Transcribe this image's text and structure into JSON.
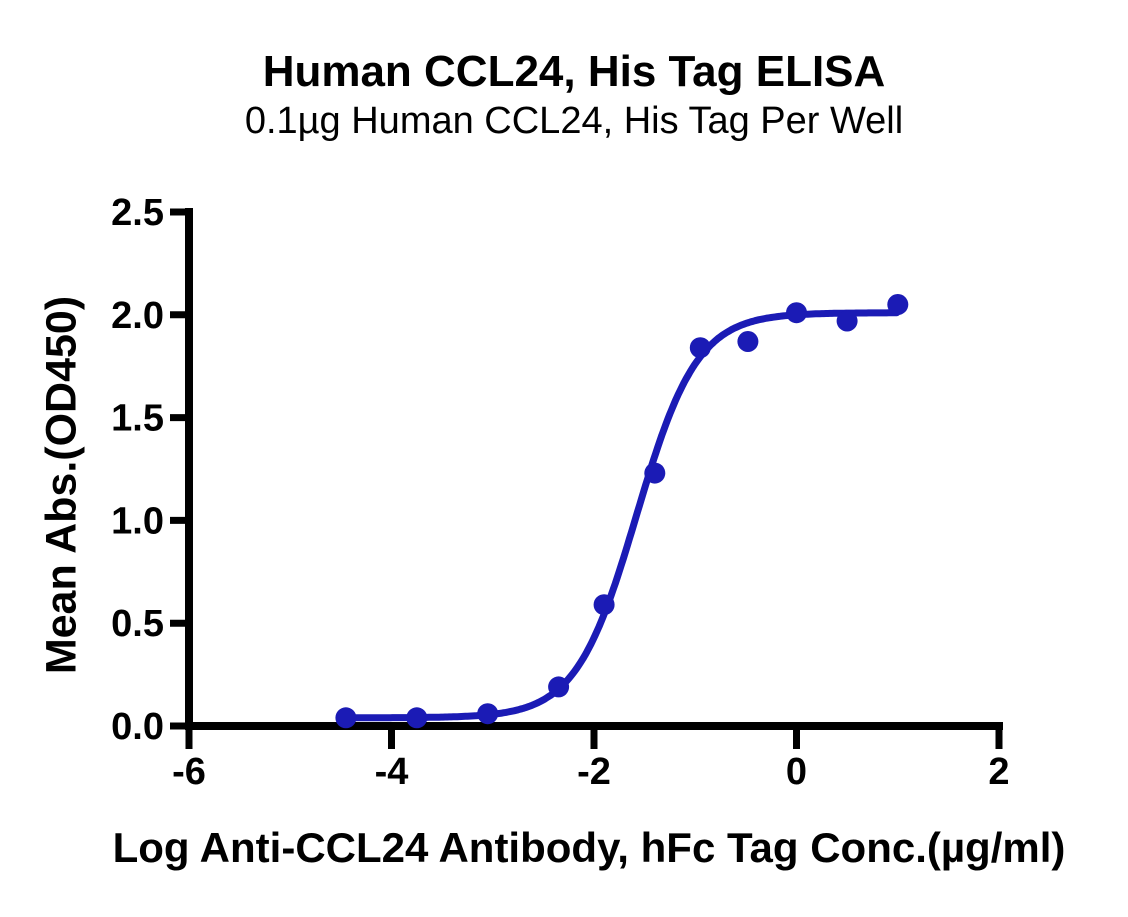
{
  "chart_data": {
    "type": "scatter",
    "title": "Human CCL24, His Tag ELISA",
    "subtitle": "0.1µg Human CCL24, His Tag Per Well",
    "xlabel": "Log Anti-CCL24 Antibody, hFc Tag Conc.(µg/ml)",
    "ylabel": "Mean Abs.(OD450)",
    "xlim": [
      -6,
      2
    ],
    "ylim": [
      0,
      2.5
    ],
    "grid": false,
    "legend": "none",
    "axis_color": "#000000",
    "background_color": "#ffffff",
    "accent_color": "#1b1bb5",
    "x_ticks": [
      {
        "value": -6,
        "label": "-6"
      },
      {
        "value": -4,
        "label": "-4"
      },
      {
        "value": -2,
        "label": "-2"
      },
      {
        "value": 0,
        "label": "0"
      },
      {
        "value": 2,
        "label": "2"
      }
    ],
    "y_ticks": [
      {
        "value": 0,
        "label": "0.0"
      },
      {
        "value": 0.5,
        "label": "0.5"
      },
      {
        "value": 1,
        "label": "1.0"
      },
      {
        "value": 1.5,
        "label": "1.5"
      },
      {
        "value": 2,
        "label": "2.0"
      },
      {
        "value": 2.5,
        "label": "2.5"
      }
    ],
    "series": [
      {
        "name": "Anti-CCL24 Antibody, hFc Tag",
        "marker_color": "#1b1bb5",
        "points": [
          {
            "x": -4.45,
            "y": 0.04
          },
          {
            "x": -3.75,
            "y": 0.04
          },
          {
            "x": -3.05,
            "y": 0.06
          },
          {
            "x": -2.35,
            "y": 0.19
          },
          {
            "x": -1.9,
            "y": 0.59
          },
          {
            "x": -1.4,
            "y": 1.23
          },
          {
            "x": -0.95,
            "y": 1.84
          },
          {
            "x": -0.48,
            "y": 1.87
          },
          {
            "x": 0.0,
            "y": 2.01
          },
          {
            "x": 0.5,
            "y": 1.97
          },
          {
            "x": 1.0,
            "y": 2.05
          }
        ]
      }
    ],
    "fit_curve": {
      "model": "4PL sigmoid",
      "bottom": 0.04,
      "top": 2.01,
      "log_ec50": -1.58,
      "hill_slope": 1.45,
      "x_start": -4.45,
      "x_end": 1.0,
      "color": "#1b1bb5"
    }
  }
}
